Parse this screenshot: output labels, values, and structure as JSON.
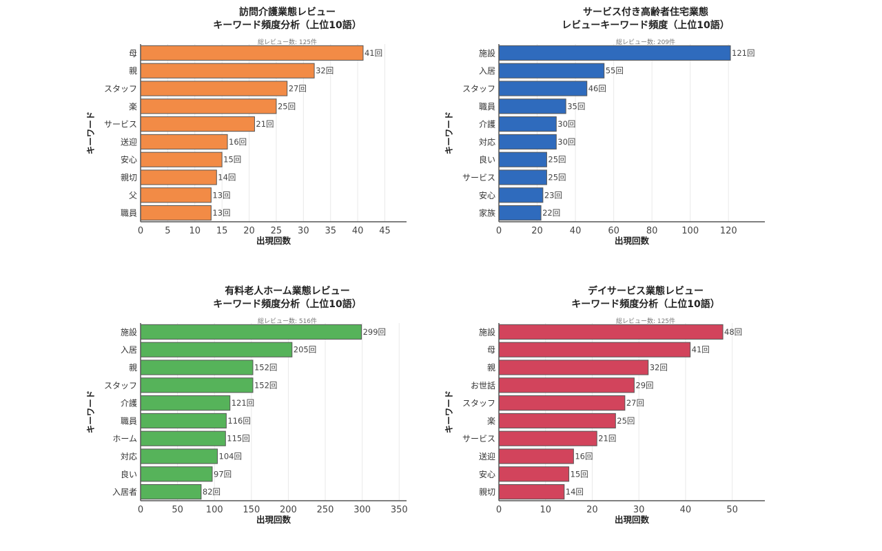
{
  "chart_data": [
    {
      "type": "bar",
      "orientation": "horizontal",
      "title_lines": [
        "訪問介護業態レビュー",
        "キーワード頻度分析（上位10語）"
      ],
      "subtitle": "総レビュー数: 125件",
      "xlabel": "出現回数",
      "ylabel": "キーワード",
      "color": "#f28b46",
      "xlim": [
        0,
        49
      ],
      "xticks": [
        0,
        5,
        10,
        15,
        20,
        25,
        30,
        35,
        40,
        45
      ],
      "grid": true,
      "value_suffix": "回",
      "categories": [
        "母",
        "親",
        "スタッフ",
        "楽",
        "サービス",
        "送迎",
        "安心",
        "親切",
        "父",
        "職員"
      ],
      "values": [
        41,
        32,
        27,
        25,
        21,
        16,
        15,
        14,
        13,
        13
      ]
    },
    {
      "type": "bar",
      "orientation": "horizontal",
      "title_lines": [
        "サービス付き高齢者住宅業態",
        "レビューキーワード頻度（上位10語）"
      ],
      "subtitle": "総レビュー数: 209件",
      "xlabel": "出現回数",
      "ylabel": "キーワード",
      "color": "#2f6bbd",
      "xlim": [
        0,
        139
      ],
      "xticks": [
        0,
        20,
        40,
        60,
        80,
        100,
        120
      ],
      "grid": true,
      "value_suffix": "回",
      "categories": [
        "施設",
        "入居",
        "スタッフ",
        "職員",
        "介護",
        "対応",
        "良い",
        "サービス",
        "安心",
        "家族"
      ],
      "values": [
        121,
        55,
        46,
        35,
        30,
        30,
        25,
        25,
        23,
        22
      ]
    },
    {
      "type": "bar",
      "orientation": "horizontal",
      "title_lines": [
        "有料老人ホーム業態レビュー",
        "キーワード頻度分析（上位10語）"
      ],
      "subtitle": "総レビュー数: 516件",
      "xlabel": "出現回数",
      "ylabel": "キーワード",
      "color": "#56b35a",
      "xlim": [
        0,
        360
      ],
      "xticks": [
        0,
        50,
        100,
        150,
        200,
        250,
        300,
        350
      ],
      "grid": true,
      "value_suffix": "回",
      "categories": [
        "施設",
        "入居",
        "親",
        "スタッフ",
        "介護",
        "職員",
        "ホーム",
        "対応",
        "良い",
        "入居者"
      ],
      "values": [
        299,
        205,
        152,
        152,
        121,
        116,
        115,
        104,
        97,
        82
      ]
    },
    {
      "type": "bar",
      "orientation": "horizontal",
      "title_lines": [
        "デイサービス業態レビュー",
        "キーワード頻度分析（上位10語）"
      ],
      "subtitle": "総レビュー数: 125件",
      "xlabel": "出現回数",
      "ylabel": "キーワード",
      "color": "#d2445c",
      "xlim": [
        0,
        57
      ],
      "xticks": [
        0,
        10,
        20,
        30,
        40,
        50
      ],
      "grid": true,
      "value_suffix": "回",
      "categories": [
        "施設",
        "母",
        "親",
        "お世話",
        "スタッフ",
        "楽",
        "サービス",
        "送迎",
        "安心",
        "親切"
      ],
      "values": [
        48,
        41,
        32,
        29,
        27,
        25,
        21,
        16,
        15,
        14
      ]
    }
  ]
}
